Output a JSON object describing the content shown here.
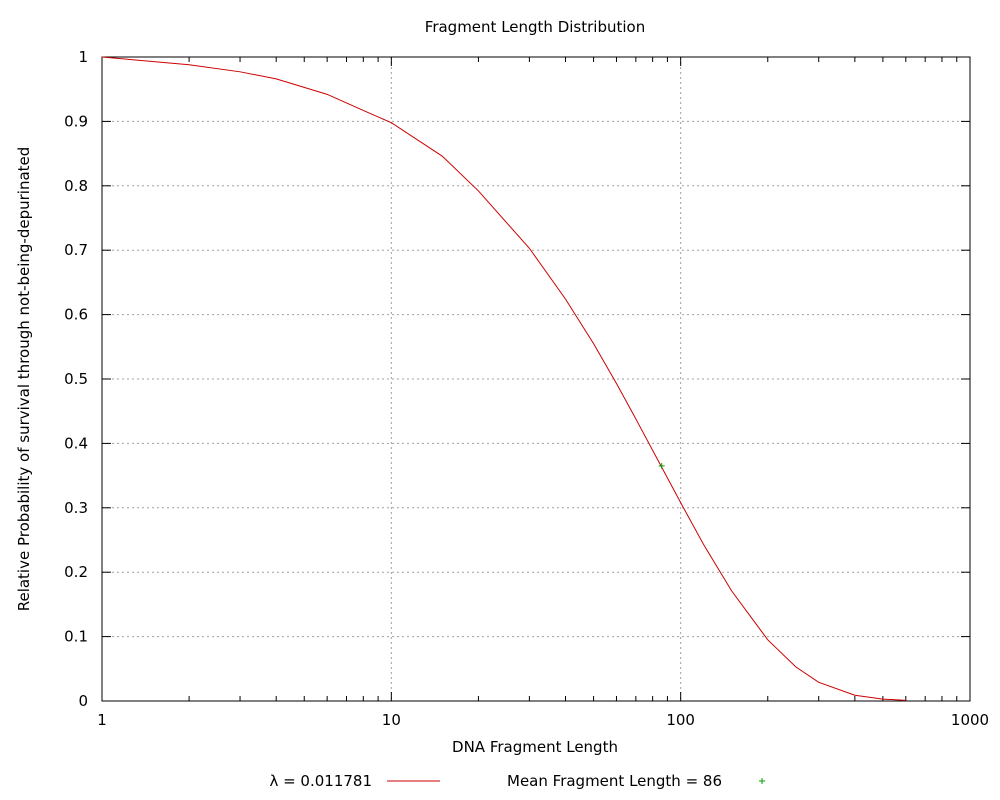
{
  "chart_data": {
    "type": "line",
    "title": "Fragment Length Distribution",
    "xlabel": "DNA Fragment Length",
    "ylabel": "Relative Probability of survival through not-being-depurinated",
    "xscale": "log",
    "xlim": [
      1,
      1000
    ],
    "ylim": [
      0,
      1
    ],
    "x_ticks": [
      1,
      10,
      100,
      1000
    ],
    "x_tick_labels": [
      "1",
      "10",
      "100",
      "1000"
    ],
    "y_ticks": [
      0,
      0.1,
      0.2,
      0.3,
      0.4,
      0.5,
      0.6,
      0.7,
      0.8,
      0.9,
      1
    ],
    "y_tick_labels": [
      "0",
      "0.1",
      "0.2",
      "0.3",
      "0.4",
      "0.5",
      "0.6",
      "0.7",
      "0.8",
      "0.9",
      "1"
    ],
    "grid": true,
    "legend_position": "bottom",
    "series": [
      {
        "name": "λ = 0.011781",
        "kind": "line",
        "color": "#cc0000",
        "x": [
          1,
          2,
          3,
          4,
          6,
          8,
          10,
          15,
          20,
          30,
          40,
          50,
          60,
          70,
          86,
          100,
          120,
          150,
          200,
          250,
          300,
          400,
          500,
          600
        ],
        "y": [
          1.0,
          0.988,
          0.977,
          0.966,
          0.942,
          0.917,
          0.898,
          0.846,
          0.792,
          0.703,
          0.624,
          0.555,
          0.493,
          0.438,
          0.363,
          0.308,
          0.243,
          0.171,
          0.095,
          0.053,
          0.029,
          0.009,
          0.003,
          0.001
        ]
      },
      {
        "name": "Mean Fragment Length = 86",
        "kind": "point",
        "color": "#00a000",
        "x": [
          86
        ],
        "y": [
          0.365
        ]
      }
    ]
  }
}
